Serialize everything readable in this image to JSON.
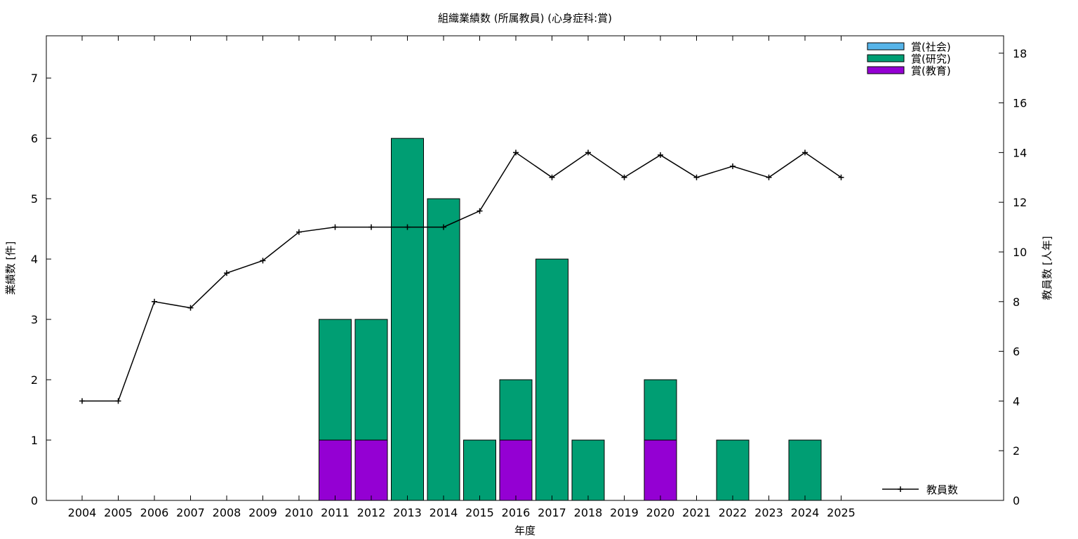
{
  "chart_data": {
    "type": "bar",
    "title": "組織業績数 (所属教員) (心身症科:賞)",
    "xlabel": "年度",
    "ylabel": "業績数 [件]",
    "y2label": "教員数 [人年]",
    "categories": [
      "2004",
      "2005",
      "2006",
      "2007",
      "2008",
      "2009",
      "2010",
      "2011",
      "2012",
      "2013",
      "2014",
      "2015",
      "2016",
      "2017",
      "2018",
      "2019",
      "2020",
      "2021",
      "2022",
      "2023",
      "2024",
      "2025"
    ],
    "ylim": [
      0,
      7.7
    ],
    "y2lim": [
      0,
      18.7
    ],
    "yticks": [
      0,
      1,
      2,
      3,
      4,
      5,
      6,
      7
    ],
    "y2ticks": [
      0,
      2,
      4,
      6,
      8,
      10,
      12,
      14,
      16,
      18
    ],
    "stacked": true,
    "grid": false,
    "legend_position": "top-right",
    "series": [
      {
        "name": "賞(教育)",
        "color": "#9400d3",
        "values": [
          0,
          0,
          0,
          0,
          0,
          0,
          0,
          1,
          1,
          0,
          0,
          0,
          1,
          0,
          0,
          0,
          1,
          0,
          0,
          0,
          0,
          0
        ]
      },
      {
        "name": "賞(研究)",
        "color": "#009e73",
        "values": [
          0,
          0,
          0,
          0,
          0,
          0,
          0,
          2,
          2,
          6,
          5,
          1,
          1,
          4,
          1,
          0,
          1,
          0,
          1,
          0,
          1,
          0
        ]
      },
      {
        "name": "賞(社会)",
        "color": "#56b4e9",
        "values": [
          0,
          0,
          0,
          0,
          0,
          0,
          0,
          0,
          0,
          0,
          0,
          0,
          0,
          0,
          0,
          0,
          0,
          0,
          0,
          0,
          0,
          0
        ]
      }
    ],
    "line_series": {
      "name": "教員数",
      "axis": "right",
      "color": "#000000",
      "values": [
        4,
        4,
        8,
        7.75,
        9.15,
        9.65,
        10.8,
        11,
        11,
        11,
        11,
        11.65,
        14,
        13,
        14,
        13,
        13.9,
        13,
        13.45,
        13,
        14,
        13
      ]
    }
  }
}
